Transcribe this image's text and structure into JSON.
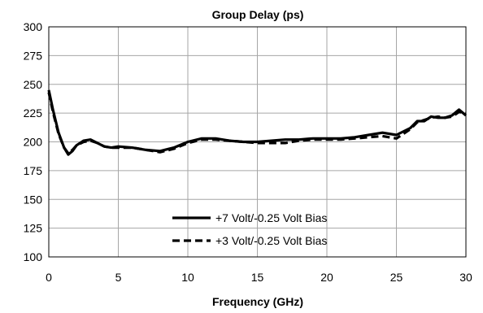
{
  "chart_data": {
    "type": "line",
    "title": "Group Delay (ps)",
    "xlabel": "Frequency (GHz)",
    "ylabel": "",
    "xlim": [
      0,
      30
    ],
    "ylim": [
      100,
      300
    ],
    "xticks": [
      0,
      5,
      10,
      15,
      20,
      25,
      30
    ],
    "yticks": [
      100,
      125,
      150,
      175,
      200,
      225,
      250,
      275,
      300
    ],
    "grid": true,
    "legend_position": "bottom-center",
    "series": [
      {
        "name": "+7 Volt/-0.25 Volt Bias",
        "style": "solid",
        "color": "#000000",
        "x": [
          0,
          0.3,
          0.7,
          1.1,
          1.4,
          1.7,
          2.0,
          2.5,
          3.0,
          3.5,
          4.0,
          4.5,
          5.0,
          6.0,
          7.0,
          8.0,
          9.0,
          10.0,
          11.0,
          12.0,
          13.0,
          14.0,
          15.0,
          16.0,
          17.0,
          18.0,
          19.0,
          20.0,
          21.0,
          22.0,
          23.0,
          24.0,
          25.0,
          26.0,
          26.5,
          27.0,
          27.5,
          28.0,
          28.5,
          29.0,
          29.5,
          30.0
        ],
        "values": [
          245,
          228,
          208,
          195,
          189,
          192,
          197,
          201,
          202,
          199,
          196,
          195,
          196,
          195,
          193,
          192,
          195,
          200,
          203,
          203,
          201,
          200,
          200,
          201,
          202,
          202,
          203,
          203,
          203,
          204,
          206,
          208,
          206,
          212,
          218,
          218,
          222,
          221,
          221,
          223,
          228,
          223
        ]
      },
      {
        "name": "+3 Volt/-0.25 Volt Bias",
        "style": "dashed",
        "color": "#000000",
        "x": [
          0,
          0.3,
          0.7,
          1.1,
          1.4,
          1.7,
          2.0,
          2.5,
          3.0,
          3.5,
          4.0,
          4.5,
          5.0,
          6.0,
          7.0,
          8.0,
          9.0,
          10.0,
          11.0,
          12.0,
          13.0,
          14.0,
          15.0,
          16.0,
          17.0,
          18.0,
          19.0,
          20.0,
          21.0,
          22.0,
          23.0,
          24.0,
          25.0,
          26.0,
          26.5,
          27.0,
          27.5,
          28.0,
          28.5,
          29.0,
          29.5,
          30.0
        ],
        "values": [
          243,
          226,
          207,
          195,
          190,
          193,
          197,
          200,
          201,
          199,
          196,
          195,
          195,
          195,
          193,
          191,
          194,
          199,
          202,
          202,
          201,
          200,
          199,
          199,
          199,
          201,
          202,
          202,
          202,
          203,
          204,
          205,
          203,
          211,
          217,
          219,
          221,
          222,
          221,
          222,
          226,
          225
        ]
      }
    ]
  }
}
